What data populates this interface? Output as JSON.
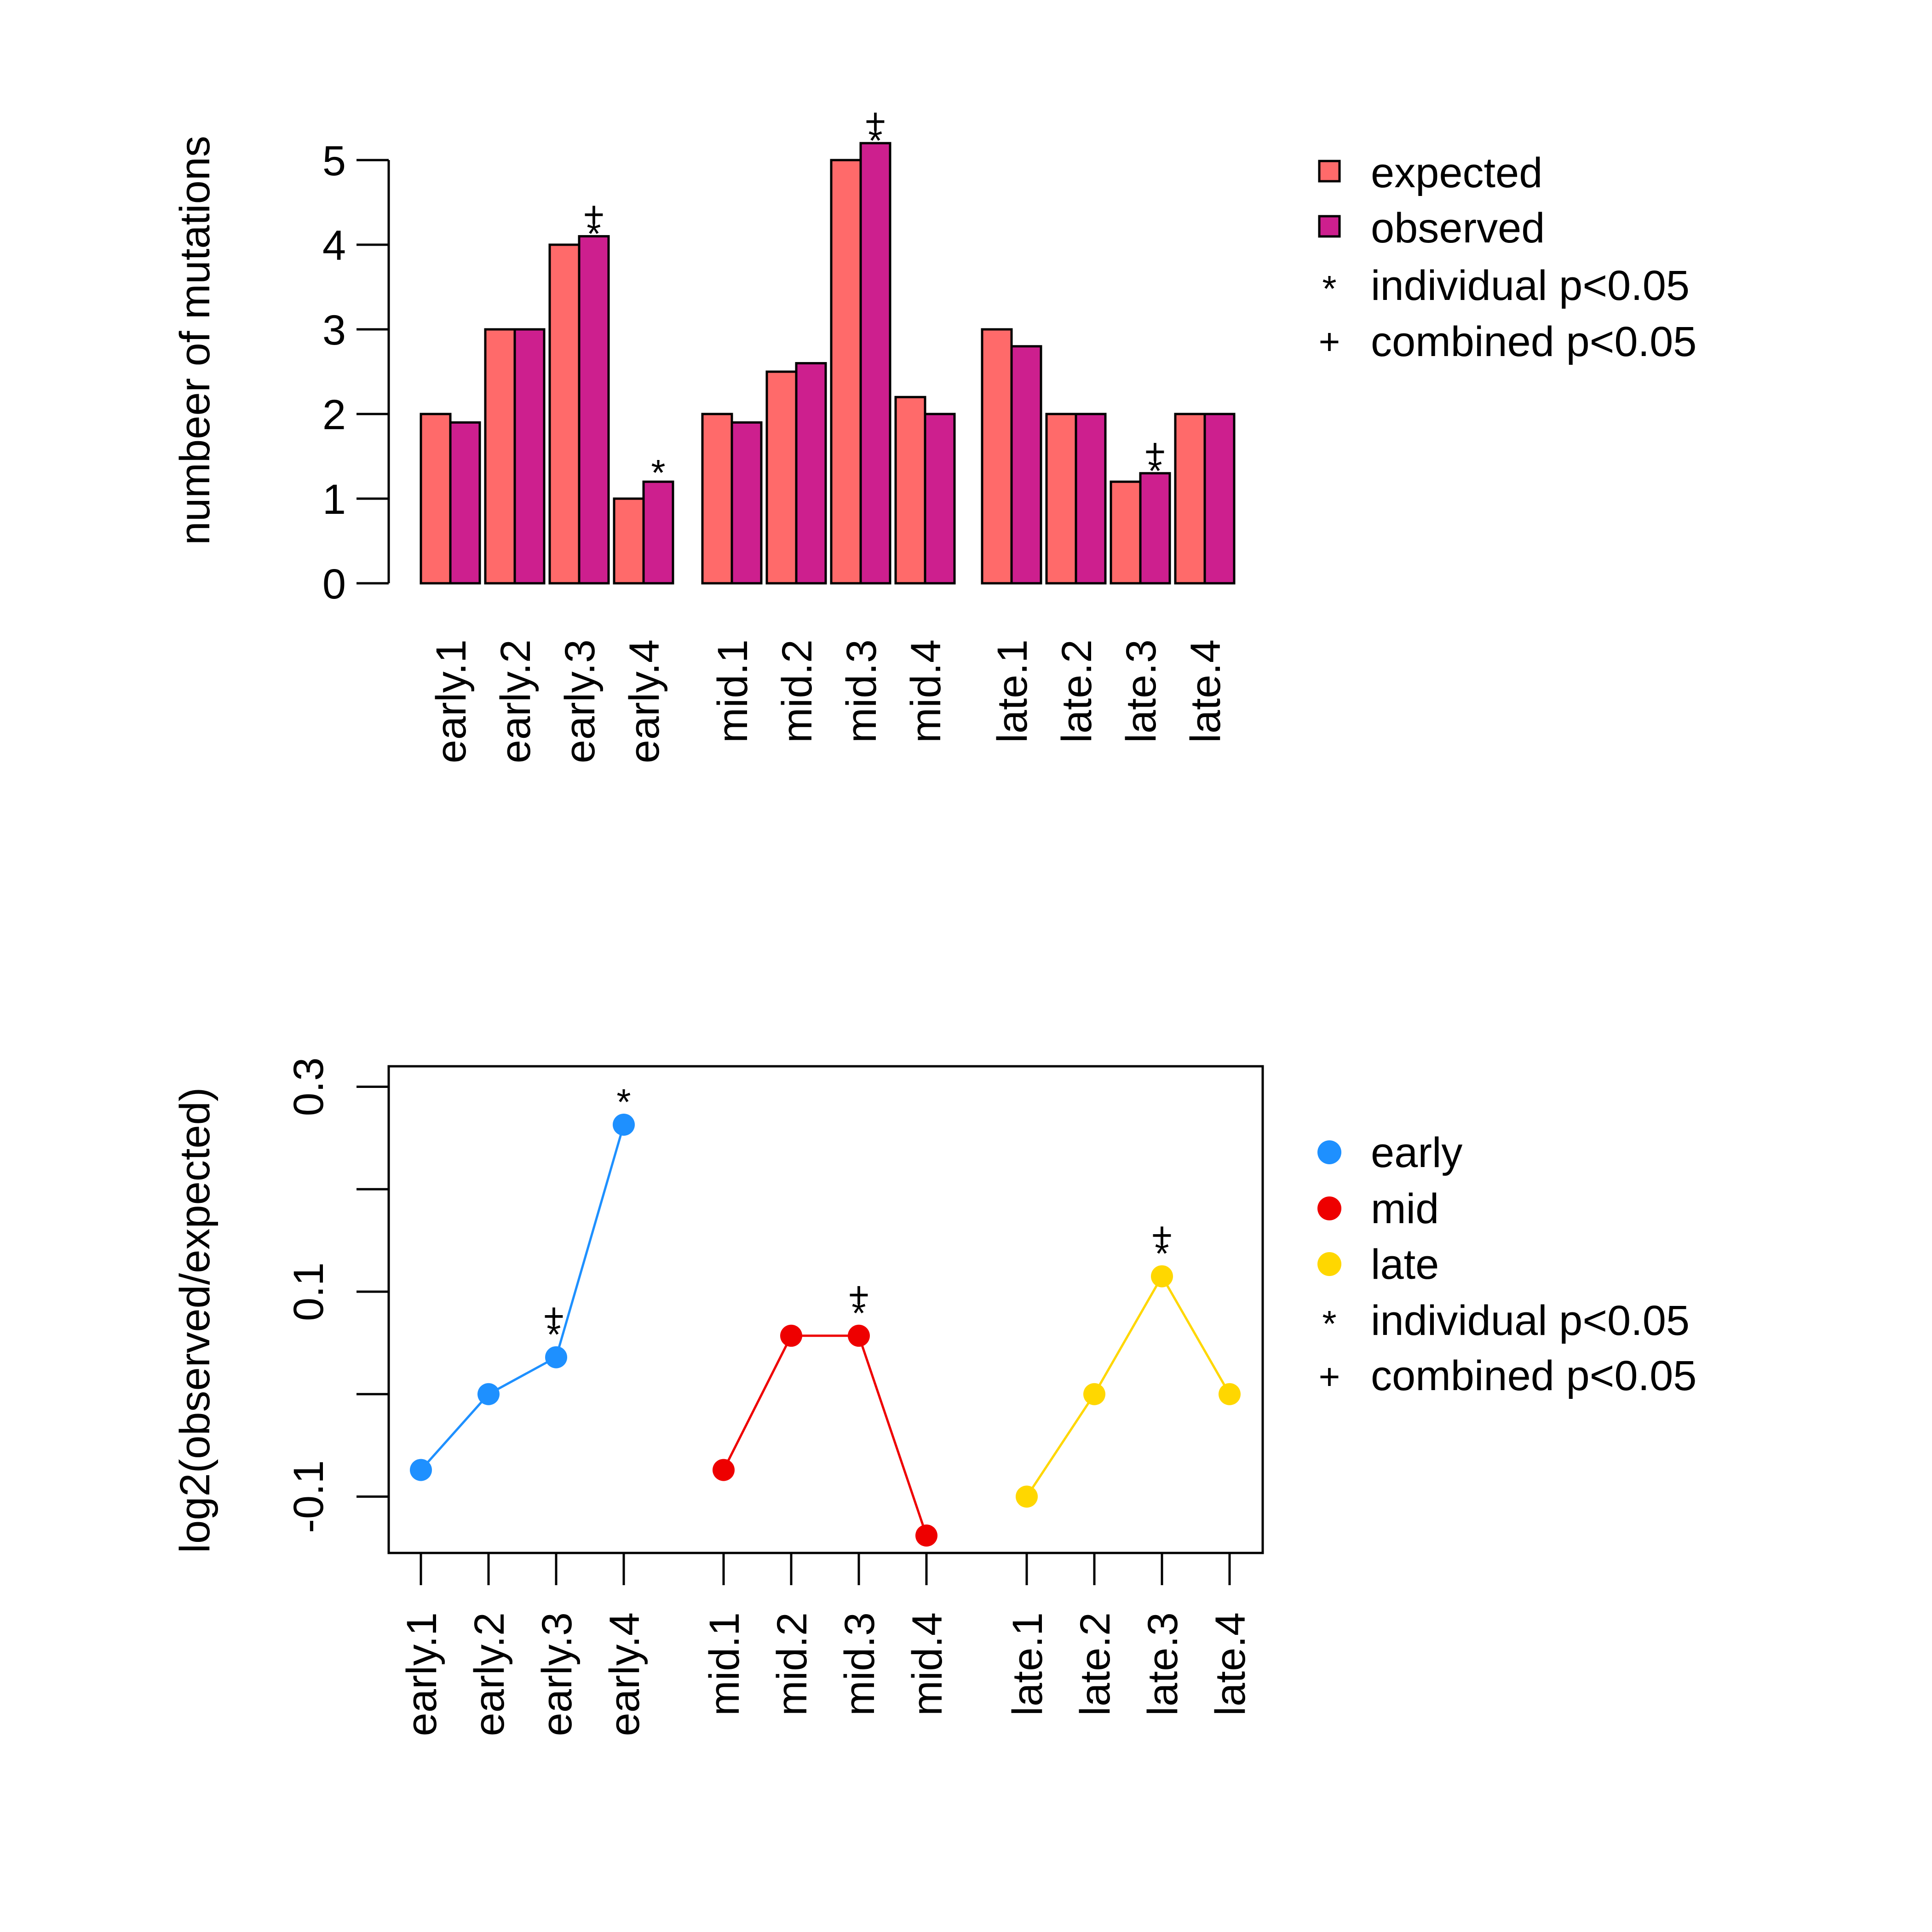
{
  "colors": {
    "expected": "#FF6A6A",
    "observed": "#CD1F8E",
    "early": "#1E90FF",
    "mid": "#EE0000",
    "late": "#FFD700",
    "outline": "#000000"
  },
  "chart_data": [
    {
      "type": "bar",
      "title": "",
      "xlabel": "",
      "ylabel": "numbeer of mutations",
      "ylim": [
        0,
        5.5
      ],
      "yticks": [
        "0",
        "1",
        "2",
        "3",
        "4",
        "5"
      ],
      "categories": [
        "early.1",
        "early.2",
        "early.3",
        "early.4",
        "mid.1",
        "mid.2",
        "mid.3",
        "mid.4",
        "late.1",
        "late.2",
        "late.3",
        "late.4"
      ],
      "series": [
        {
          "name": "expected",
          "values": [
            2,
            3,
            4,
            1,
            2,
            2.5,
            5,
            2.2,
            3,
            2,
            1.2,
            2
          ]
        },
        {
          "name": "observed",
          "values": [
            1.9,
            3,
            4.1,
            1.2,
            1.9,
            2.6,
            5.2,
            2,
            2.8,
            2,
            1.3,
            2
          ]
        }
      ],
      "annotations": [
        {
          "category": "early.3",
          "symbols": "*+"
        },
        {
          "category": "early.4",
          "symbols": "*"
        },
        {
          "category": "mid.3",
          "symbols": "*+"
        },
        {
          "category": "late.3",
          "symbols": "*+"
        }
      ],
      "legend": {
        "position": "right",
        "entries": [
          "expected",
          "observed",
          "individual p<0.05",
          "combined p<0.05"
        ],
        "symbols": [
          "*",
          "+"
        ]
      }
    },
    {
      "type": "line",
      "title": "",
      "xlabel": "",
      "ylabel": "log2(observed/expected)",
      "ylim": [
        -0.155,
        0.32
      ],
      "yticks": [
        -0.1,
        0,
        0.1,
        0.2,
        0.3
      ],
      "ytick_labels": [
        "-0.1",
        "",
        "0.1",
        "",
        "0.3"
      ],
      "categories": [
        "early.1",
        "early.2",
        "early.3",
        "early.4",
        "mid.1",
        "mid.2",
        "mid.3",
        "mid.4",
        "late.1",
        "late.2",
        "late.3",
        "late.4"
      ],
      "series": [
        {
          "name": "early",
          "x": [
            "early.1",
            "early.2",
            "early.3",
            "early.4"
          ],
          "values": [
            -0.074,
            0.0,
            0.036,
            0.263
          ]
        },
        {
          "name": "mid",
          "x": [
            "mid.1",
            "mid.2",
            "mid.3",
            "mid.4"
          ],
          "values": [
            -0.074,
            0.057,
            0.057,
            -0.138
          ]
        },
        {
          "name": "late",
          "x": [
            "late.1",
            "late.2",
            "late.3",
            "late.4"
          ],
          "values": [
            -0.1,
            0.0,
            0.115,
            0.0
          ]
        }
      ],
      "annotations": [
        {
          "category": "early.3",
          "symbols": "*+"
        },
        {
          "category": "early.4",
          "symbols": "*"
        },
        {
          "category": "mid.3",
          "symbols": "*+"
        },
        {
          "category": "late.3",
          "symbols": "*+"
        }
      ],
      "legend": {
        "position": "right",
        "entries": [
          "early",
          "mid",
          "late",
          "individual p<0.05",
          "combined p<0.05"
        ],
        "symbols": [
          "*",
          "+"
        ]
      }
    }
  ]
}
